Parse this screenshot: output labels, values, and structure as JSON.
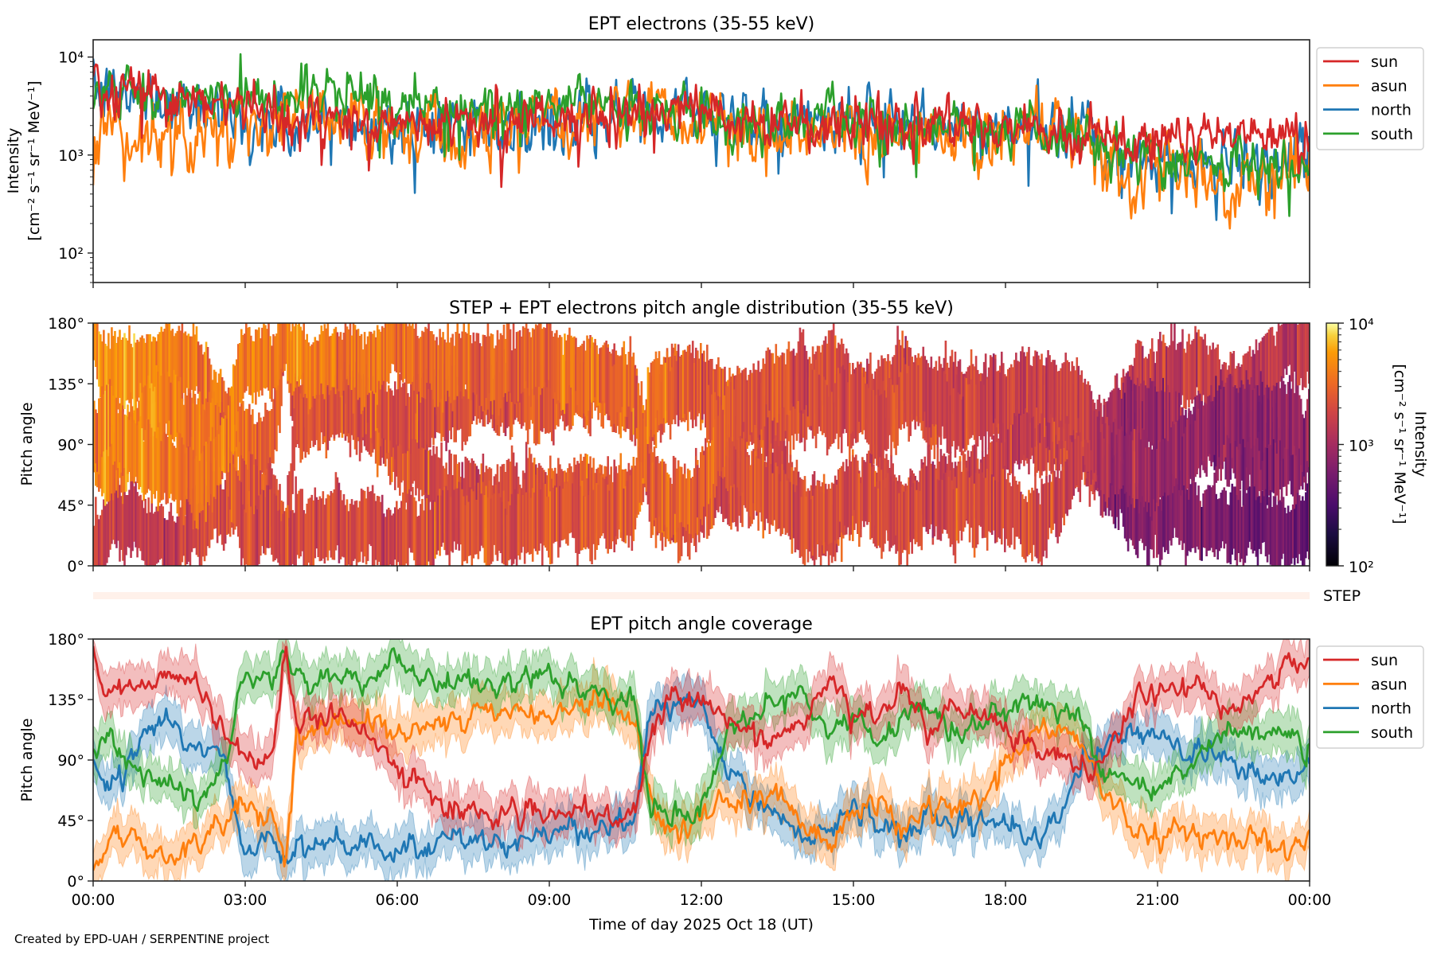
{
  "figure": {
    "credit": "Created by EPD-UAH / SERPENTINE project",
    "xlabel": "Time of day 2025 Oct 18 (UT)",
    "xticks": [
      "00:00",
      "03:00",
      "06:00",
      "09:00",
      "12:00",
      "15:00",
      "18:00",
      "21:00",
      "00:00"
    ],
    "series_colors": {
      "sun": "#d62728",
      "asun": "#ff7f0e",
      "north": "#1f77b4",
      "south": "#2ca02c"
    }
  },
  "chart_data": [
    {
      "type": "line",
      "title": "EPT electrons (35-55 keV)",
      "xlabel": "",
      "ylabel": "Intensity",
      "ylabel_units": "[cm⁻² s⁻¹ sr⁻¹ MeV⁻¹]",
      "yscale": "log",
      "ylim": [
        50,
        15000
      ],
      "xlim_hours": [
        0,
        24
      ],
      "yticks": [
        {
          "value": 100,
          "label": "10²"
        },
        {
          "value": 1000,
          "label": "10³"
        },
        {
          "value": 10000,
          "label": "10⁴"
        }
      ],
      "legend": {
        "entries": [
          "sun",
          "asun",
          "north",
          "south"
        ],
        "placement": "outside-right-top"
      },
      "grid": false,
      "series": [
        {
          "name": "sun",
          "trend_hours": [
            0,
            0.5,
            2,
            4,
            6,
            8,
            9,
            11,
            13,
            16,
            18,
            19.5,
            20,
            22,
            23.5,
            24
          ],
          "trend_values": [
            4500,
            4800,
            3800,
            2600,
            2100,
            2000,
            2400,
            2900,
            2200,
            2000,
            1900,
            1700,
            1500,
            1600,
            1500,
            1300
          ],
          "noise": 0.22
        },
        {
          "name": "asun",
          "trend_hours": [
            0,
            0.5,
            2,
            3,
            4,
            6,
            8,
            9,
            11,
            13,
            16,
            18,
            19.5,
            20,
            22,
            23.5,
            24
          ],
          "trend_values": [
            1600,
            1500,
            1600,
            2500,
            2300,
            2000,
            2000,
            2500,
            2600,
            2000,
            1800,
            1600,
            1500,
            700,
            600,
            550,
            500
          ],
          "noise": 0.3
        },
        {
          "name": "north",
          "trend_hours": [
            0,
            0.5,
            2,
            3,
            4,
            6,
            8,
            9,
            11,
            13,
            16,
            18,
            19.5,
            20,
            22,
            23.5,
            24
          ],
          "trend_values": [
            4000,
            4200,
            3800,
            2000,
            2000,
            2000,
            2000,
            2400,
            2900,
            2300,
            2000,
            1900,
            1700,
            900,
            800,
            750,
            700
          ],
          "noise": 0.25
        },
        {
          "name": "south",
          "trend_hours": [
            0,
            0.5,
            2,
            3,
            4,
            6,
            8,
            9,
            11,
            13,
            16,
            18,
            19.5,
            20,
            22,
            23.5,
            24
          ],
          "trend_values": [
            4200,
            4800,
            3500,
            3800,
            4300,
            3200,
            2800,
            3300,
            2900,
            2200,
            2000,
            1700,
            1600,
            900,
            850,
            800,
            750
          ],
          "noise": 0.22
        }
      ]
    },
    {
      "type": "heatmap",
      "title": "STEP + EPT electrons pitch angle distribution (35-55 keV)",
      "xlabel": "",
      "ylabel": "Pitch angle",
      "ylim": [
        0,
        180
      ],
      "yticks": [
        "0°",
        "45°",
        "90°",
        "135°",
        "180°"
      ],
      "ytick_values": [
        0,
        45,
        90,
        135,
        180
      ],
      "colormap": "inferno",
      "colorbar": {
        "scale": "log",
        "range": [
          100,
          10000
        ],
        "ticks": [
          {
            "value": 100,
            "label": "10²"
          },
          {
            "value": 1000,
            "label": "10³"
          },
          {
            "value": 10000,
            "label": "10⁴"
          }
        ],
        "label": "Intensity",
        "units": "[cm⁻² s⁻¹ sr⁻¹ MeV⁻¹]"
      },
      "step_strip_label": "STEP",
      "grid": false
    },
    {
      "type": "line",
      "title": "EPT pitch angle coverage",
      "xlabel": "Time of day 2025 Oct 18 (UT)",
      "ylabel": "Pitch angle",
      "ylim": [
        0,
        180
      ],
      "yticks": [
        "0°",
        "45°",
        "90°",
        "135°",
        "180°"
      ],
      "ytick_values": [
        0,
        45,
        90,
        135,
        180
      ],
      "legend": {
        "entries": [
          "sun",
          "asun",
          "north",
          "south"
        ],
        "placement": "outside-right-top"
      },
      "band_halfwidth_deg": 15,
      "grid": false,
      "series": [
        {
          "name": "sun",
          "hours": [
            0,
            0.3,
            0.6,
            1,
            1.5,
            2,
            2.5,
            3,
            3.5,
            3.8,
            4,
            5,
            6,
            6.5,
            7,
            8,
            9,
            10,
            10.7,
            11,
            11.5,
            12,
            12.5,
            13,
            13.5,
            14,
            14.5,
            15,
            15.5,
            16,
            16.5,
            17,
            17.5,
            18,
            18.5,
            19,
            19.5,
            20,
            20.5,
            21,
            21.5,
            22,
            22.5,
            23,
            23.5,
            24
          ],
          "values": [
            170,
            140,
            145,
            150,
            155,
            150,
            110,
            95,
            90,
            170,
            120,
            120,
            85,
            70,
            55,
            50,
            50,
            45,
            48,
            110,
            140,
            140,
            120,
            110,
            100,
            120,
            150,
            120,
            130,
            140,
            110,
            130,
            120,
            110,
            100,
            95,
            80,
            90,
            135,
            140,
            145,
            140,
            125,
            140,
            165,
            155
          ]
        },
        {
          "name": "asun",
          "hours": [
            0,
            0.3,
            0.6,
            1,
            1.5,
            2,
            2.5,
            3,
            3.5,
            3.8,
            4,
            5,
            6,
            6.5,
            7,
            8,
            9,
            10,
            10.7,
            11,
            11.5,
            12,
            12.5,
            13,
            13.5,
            14,
            14.5,
            15,
            15.5,
            16,
            16.5,
            17,
            17.5,
            18,
            18.5,
            19,
            19.5,
            20,
            20.5,
            21,
            21.5,
            22,
            22.5,
            23,
            23.5,
            24
          ],
          "values": [
            10,
            35,
            30,
            25,
            20,
            30,
            40,
            60,
            50,
            10,
            110,
            120,
            110,
            115,
            120,
            125,
            125,
            130,
            120,
            50,
            45,
            50,
            60,
            55,
            70,
            40,
            25,
            50,
            60,
            40,
            55,
            55,
            60,
            90,
            110,
            115,
            100,
            60,
            40,
            35,
            40,
            35,
            30,
            35,
            20,
            30
          ]
        },
        {
          "name": "north",
          "hours": [
            0,
            0.3,
            0.6,
            1,
            1.5,
            2,
            2.5,
            3,
            3.5,
            3.8,
            4,
            5,
            6,
            6.5,
            7,
            8,
            9,
            10,
            10.7,
            11,
            11.5,
            12,
            12.5,
            13,
            13.5,
            14,
            14.5,
            15,
            15.5,
            16,
            16.5,
            17,
            17.5,
            18,
            18.5,
            19,
            19.5,
            20,
            20.5,
            21,
            21.5,
            22,
            22.5,
            23,
            23.5,
            24
          ],
          "values": [
            90,
            75,
            80,
            110,
            120,
            100,
            95,
            20,
            30,
            15,
            30,
            30,
            20,
            25,
            35,
            30,
            35,
            40,
            45,
            125,
            135,
            130,
            80,
            65,
            50,
            30,
            40,
            60,
            45,
            30,
            50,
            40,
            50,
            40,
            35,
            40,
            85,
            105,
            110,
            105,
            100,
            95,
            85,
            80,
            75,
            80
          ]
        },
        {
          "name": "south",
          "hours": [
            0,
            0.3,
            0.6,
            1,
            1.5,
            2,
            2.5,
            3,
            3.5,
            3.8,
            4,
            5,
            6,
            6.5,
            7,
            8,
            9,
            10,
            10.7,
            11,
            11.5,
            12,
            12.5,
            13,
            13.5,
            14,
            14.5,
            15,
            15.5,
            16,
            16.5,
            17,
            17.5,
            18,
            18.5,
            19,
            19.5,
            20,
            20.5,
            21,
            21.5,
            22,
            22.5,
            23,
            23.5,
            24
          ],
          "values": [
            100,
            110,
            90,
            80,
            70,
            60,
            80,
            160,
            150,
            170,
            150,
            145,
            165,
            150,
            145,
            145,
            150,
            140,
            135,
            50,
            45,
            55,
            100,
            120,
            130,
            140,
            110,
            130,
            100,
            120,
            130,
            110,
            120,
            130,
            135,
            125,
            120,
            80,
            75,
            70,
            80,
            100,
            115,
            110,
            105,
            100
          ]
        }
      ]
    }
  ]
}
